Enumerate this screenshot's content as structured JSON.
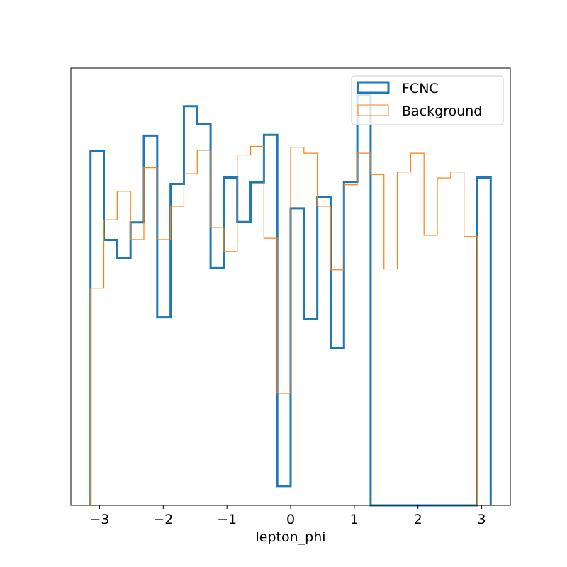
{
  "chart_data": {
    "type": "step-histogram",
    "xlabel": "lepton_phi",
    "ylabel": "",
    "xlim": [
      -3.45,
      3.45
    ],
    "ylim": [
      0,
      1.0
    ],
    "xticks": [
      -3,
      -2,
      -1,
      0,
      1,
      2,
      3
    ],
    "xtick_labels": [
      "−3",
      "−2",
      "−1",
      "0",
      "1",
      "2",
      "3"
    ],
    "yticks_visible": false,
    "grid": false,
    "legend_position": "top-right",
    "bin_edges": [
      -3.1416,
      -2.9322,
      -2.7227,
      -2.5133,
      -2.3038,
      -2.0944,
      -1.885,
      -1.6755,
      -1.4661,
      -1.2566,
      -1.0472,
      -0.8378,
      -0.6283,
      -0.4189,
      -0.2094,
      0.0,
      0.2094,
      0.4189,
      0.6283,
      0.8378,
      1.0472,
      1.2566,
      1.4661,
      1.6755,
      1.885,
      2.0944,
      2.3038,
      2.5133,
      2.7227,
      2.9322,
      3.1416
    ],
    "series": [
      {
        "name": "FCNC",
        "color": "#1f77b4",
        "line_width": "thick",
        "values": [
          0.83,
          0.621,
          0.578,
          0.662,
          0.865,
          0.44,
          0.752,
          0.934,
          0.892,
          0.555,
          0.767,
          0.663,
          0.756,
          0.867,
          0.045,
          0.695,
          0.436,
          0.721,
          0.369,
          0.757,
          0.961,
          0.0,
          0.0,
          0.0,
          0.0,
          0.0,
          0.0,
          0.0,
          0.0,
          0.767
        ]
      },
      {
        "name": "Background",
        "color": "#ff7f0e",
        "line_width": "thin",
        "values": [
          0.508,
          0.668,
          0.735,
          0.622,
          0.79,
          0.622,
          0.7,
          0.776,
          0.831,
          0.65,
          0.594,
          0.82,
          0.84,
          0.625,
          0.262,
          0.838,
          0.824,
          0.7,
          0.551,
          0.75,
          0.824,
          0.774,
          0.553,
          0.78,
          0.824,
          0.632,
          0.766,
          0.78,
          0.629,
          0.0
        ]
      }
    ]
  }
}
